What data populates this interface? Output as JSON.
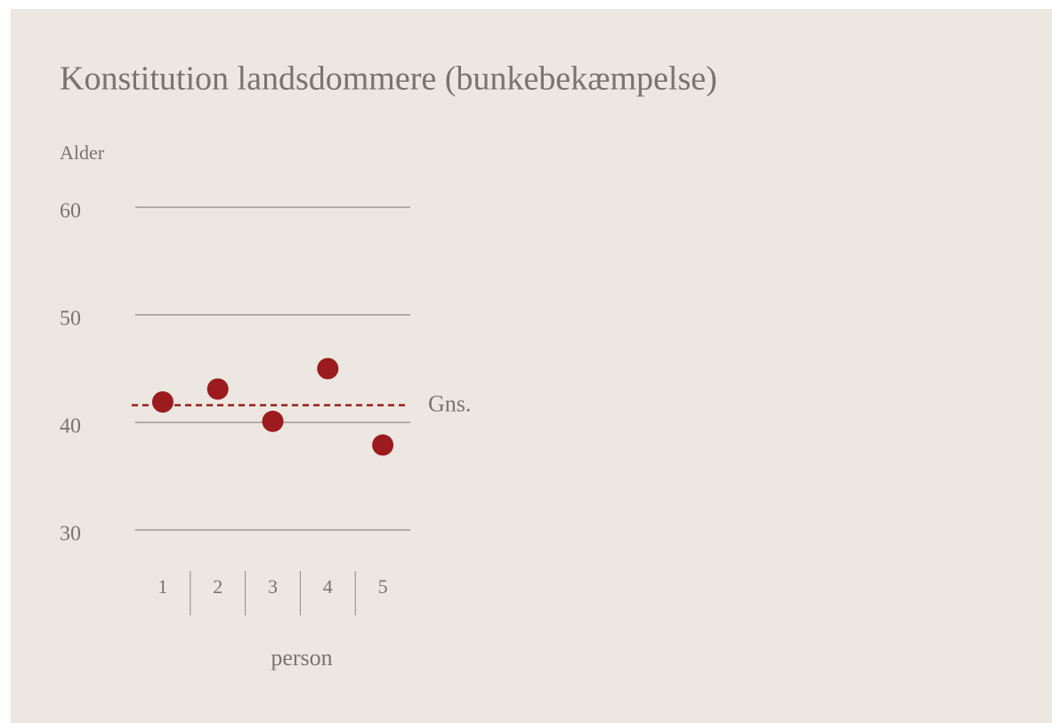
{
  "chart_data": {
    "type": "dot",
    "title": "Konstitution landsdommere (bunkebekæmpelse)",
    "y_label": "Alder",
    "x_label": "person",
    "categories": [
      "1",
      "2",
      "3",
      "4",
      "5"
    ],
    "values": [
      41.9,
      43.1,
      40.1,
      45.0,
      37.9
    ],
    "color": "#9b1b1e",
    "mean": 41.6,
    "mean_label": "Gns.",
    "ylim": [
      30,
      60
    ],
    "yticks": [
      30,
      40,
      50,
      60
    ],
    "grid": true
  }
}
